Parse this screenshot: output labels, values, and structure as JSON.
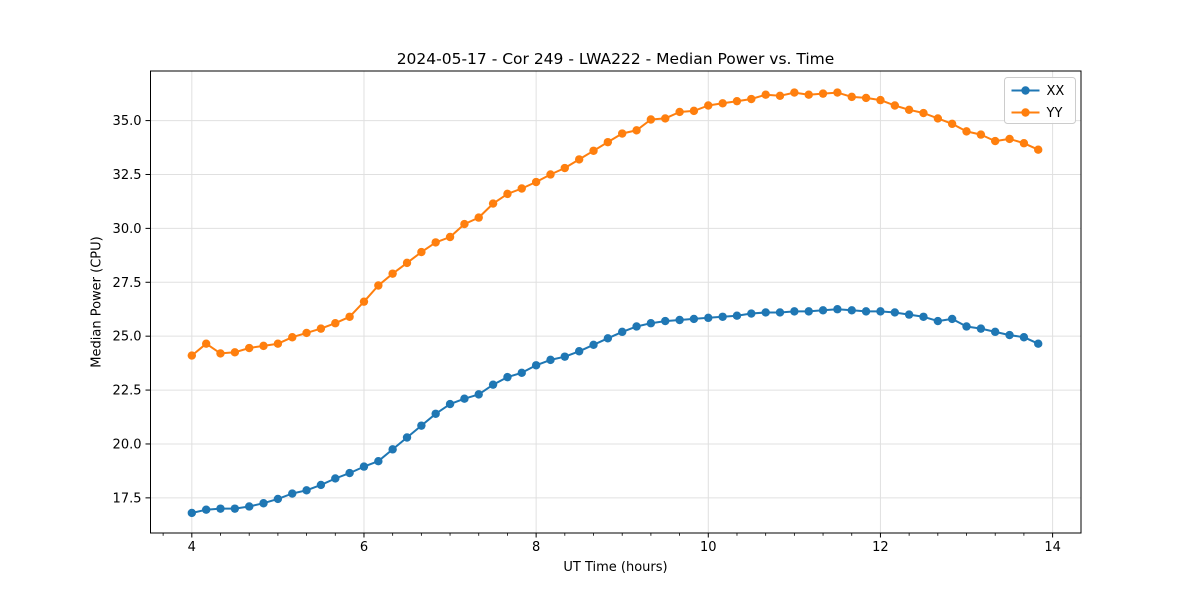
{
  "figure": {
    "title": "2024-05-17 - Cor 249 - LWA222 - Median Power vs. Time",
    "xlabel": "UT Time (hours)",
    "ylabel": "Median Power (CPU)"
  },
  "chart_data": {
    "type": "line",
    "title": "2024-05-17 - Cor 249 - LWA222 - Median Power vs. Time",
    "xlabel": "UT Time (hours)",
    "ylabel": "Median Power (CPU)",
    "grid": true,
    "legend_position": "upper right",
    "xlim": [
      3.52,
      14.33
    ],
    "ylim": [
      15.87,
      37.3
    ],
    "x_ticks": [
      4,
      6,
      8,
      10,
      12,
      14
    ],
    "x_minor_tick_step_hours": 0.3333,
    "y_ticks": [
      17.5,
      20.0,
      22.5,
      25.0,
      27.5,
      30.0,
      32.5,
      35.0
    ],
    "x": [
      4.0,
      4.167,
      4.333,
      4.5,
      4.667,
      4.833,
      5.0,
      5.167,
      5.333,
      5.5,
      5.667,
      5.833,
      6.0,
      6.167,
      6.333,
      6.5,
      6.667,
      6.833,
      7.0,
      7.167,
      7.333,
      7.5,
      7.667,
      7.833,
      8.0,
      8.167,
      8.333,
      8.5,
      8.667,
      8.833,
      9.0,
      9.167,
      9.333,
      9.5,
      9.667,
      9.833,
      10.0,
      10.167,
      10.333,
      10.5,
      10.667,
      10.833,
      11.0,
      11.167,
      11.333,
      11.5,
      11.667,
      11.833,
      12.0,
      12.167,
      12.333,
      12.5,
      12.667,
      12.833,
      13.0,
      13.167,
      13.333,
      13.5,
      13.667,
      13.833
    ],
    "series": [
      {
        "name": "XX",
        "color": "#1f77b4",
        "values": [
          16.8,
          16.95,
          17.0,
          17.0,
          17.1,
          17.25,
          17.45,
          17.7,
          17.85,
          18.1,
          18.4,
          18.65,
          18.95,
          19.2,
          19.75,
          20.3,
          20.85,
          21.4,
          21.85,
          22.1,
          22.3,
          22.75,
          23.1,
          23.3,
          23.65,
          23.9,
          24.05,
          24.3,
          24.6,
          24.9,
          25.2,
          25.45,
          25.6,
          25.7,
          25.75,
          25.8,
          25.85,
          25.9,
          25.95,
          26.05,
          26.1,
          26.1,
          26.15,
          26.15,
          26.2,
          26.25,
          26.2,
          26.15,
          26.15,
          26.1,
          26.0,
          25.9,
          25.7,
          25.8,
          25.45,
          25.35,
          25.2,
          25.05,
          24.95,
          24.65
        ]
      },
      {
        "name": "YY",
        "color": "#ff7f0e",
        "values": [
          24.1,
          24.65,
          24.2,
          24.25,
          24.45,
          24.55,
          24.65,
          24.95,
          25.15,
          25.35,
          25.6,
          25.9,
          26.6,
          27.35,
          27.9,
          28.4,
          28.9,
          29.35,
          29.6,
          30.2,
          30.5,
          31.15,
          31.6,
          31.85,
          32.15,
          32.5,
          32.8,
          33.2,
          33.6,
          34.0,
          34.4,
          34.55,
          35.05,
          35.1,
          35.4,
          35.45,
          35.7,
          35.8,
          35.9,
          36.0,
          36.2,
          36.15,
          36.3,
          36.2,
          36.25,
          36.3,
          36.1,
          36.05,
          35.95,
          35.7,
          35.5,
          35.35,
          35.1,
          34.85,
          34.5,
          34.35,
          34.05,
          34.15,
          33.95,
          33.65
        ]
      }
    ],
    "style": {
      "grid_color": "#e0e0e0",
      "spine_color": "#000000",
      "background": "#ffffff",
      "legend_border": "#cccccc",
      "marker": "circle"
    }
  }
}
